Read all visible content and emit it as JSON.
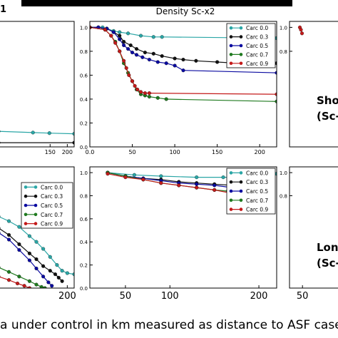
{
  "figure": {
    "header_left": "1",
    "header_center": "Density Sc-x2",
    "caption": "a under control in km measured as distance to ASF cases at",
    "side_labels": [
      {
        "line1": "Sho",
        "line2": "(Sc-"
      },
      {
        "line1": "Lon",
        "line2": "(Sc-"
      }
    ]
  },
  "colors": {
    "Carc 0.0": "#2aa6a6",
    "Carc 0.3": "#111111",
    "Carc 0.5": "#0a0aa0",
    "Carc 0.7": "#1f7a1f",
    "Carc 0.9": "#c41a1a"
  },
  "chart_data": [
    {
      "id": "top-left",
      "type": "line",
      "xlim": [
        0,
        220
      ],
      "ylim": [
        0,
        1.05
      ],
      "xticks": [
        150,
        200
      ],
      "yticks": [],
      "series": [
        {
          "name": "Carc 0.0",
          "x": [
            0,
            100,
            148,
            220
          ],
          "y": [
            0.13,
            0.12,
            0.115,
            0.11
          ]
        },
        {
          "name": "Carc 0.3",
          "x": [
            0,
            220
          ],
          "y": [
            0.035,
            0.035
          ]
        }
      ]
    },
    {
      "id": "top-middle",
      "type": "line",
      "xlim": [
        0,
        220
      ],
      "ylim": [
        0,
        1.05
      ],
      "xticks": [
        0,
        50,
        100,
        150,
        200
      ],
      "yticks": [
        0.0,
        0.2,
        0.4,
        0.6,
        0.8,
        1.0
      ],
      "legend": [
        "Carc 0.0",
        "Carc 0.3",
        "Carc 0.5",
        "Carc 0.7",
        "Carc 0.9"
      ],
      "legend_loc": "upper right",
      "series": [
        {
          "name": "Carc 0.0",
          "x": [
            0,
            10,
            15,
            20,
            28,
            35,
            45,
            60,
            75,
            85,
            220
          ],
          "y": [
            1.0,
            1.0,
            1.0,
            0.99,
            0.97,
            0.96,
            0.95,
            0.93,
            0.92,
            0.92,
            0.91
          ]
        },
        {
          "name": "Carc 0.3",
          "x": [
            0,
            10,
            20,
            28,
            35,
            40,
            48,
            55,
            65,
            75,
            85,
            100,
            110,
            125,
            150,
            175,
            220
          ],
          "y": [
            1.0,
            1.0,
            0.99,
            0.96,
            0.93,
            0.88,
            0.85,
            0.82,
            0.79,
            0.78,
            0.76,
            0.74,
            0.73,
            0.72,
            0.71,
            0.7,
            0.7
          ]
        },
        {
          "name": "Carc 0.5",
          "x": [
            0,
            10,
            20,
            28,
            35,
            40,
            45,
            50,
            55,
            62,
            70,
            80,
            90,
            100,
            110,
            220
          ],
          "y": [
            1.0,
            1.0,
            0.99,
            0.96,
            0.9,
            0.85,
            0.82,
            0.79,
            0.77,
            0.75,
            0.73,
            0.71,
            0.7,
            0.68,
            0.64,
            0.62
          ]
        },
        {
          "name": "Carc 0.7",
          "x": [
            0,
            18,
            25,
            30,
            35,
            40,
            45,
            50,
            55,
            60,
            65,
            70,
            80,
            90,
            220
          ],
          "y": [
            1.0,
            0.98,
            0.93,
            0.88,
            0.8,
            0.7,
            0.62,
            0.55,
            0.48,
            0.44,
            0.43,
            0.42,
            0.41,
            0.4,
            0.38
          ]
        },
        {
          "name": "Carc 0.9",
          "x": [
            0,
            18,
            25,
            30,
            35,
            40,
            43,
            46,
            50,
            53,
            56,
            60,
            65,
            70,
            220
          ],
          "y": [
            1.0,
            0.98,
            0.93,
            0.87,
            0.8,
            0.72,
            0.66,
            0.6,
            0.55,
            0.51,
            0.48,
            0.46,
            0.45,
            0.45,
            0.44
          ]
        }
      ]
    },
    {
      "id": "top-right",
      "type": "line",
      "xlim": [
        0,
        220
      ],
      "ylim": [
        0,
        1.05
      ],
      "xticks": [],
      "yticks": [
        0.8,
        1.0
      ],
      "series": [
        {
          "name": "Carc 0.9",
          "x": [
            40,
            44,
            48
          ],
          "y": [
            1.0,
            0.98,
            0.95
          ]
        }
      ]
    },
    {
      "id": "bottom-left",
      "type": "line",
      "xlim": [
        0,
        220
      ],
      "ylim": [
        0,
        1.05
      ],
      "xticks": [
        200
      ],
      "yticks": [],
      "legend": [
        "Carc 0.0",
        "Carc 0.3",
        "Carc 0.5",
        "Carc 0.7",
        "Carc 0.9"
      ],
      "legend_loc": "upper right",
      "series": [
        {
          "name": "Carc 0.0",
          "x": [
            0,
            30,
            60,
            90,
            110,
            130,
            150,
            170,
            185,
            200,
            220
          ],
          "y": [
            0.62,
            0.58,
            0.53,
            0.45,
            0.4,
            0.34,
            0.27,
            0.2,
            0.15,
            0.13,
            0.12
          ]
        },
        {
          "name": "Carc 0.3",
          "x": [
            0,
            30,
            60,
            90,
            110,
            130,
            150,
            165,
            175,
            185
          ],
          "y": [
            0.52,
            0.46,
            0.38,
            0.3,
            0.25,
            0.19,
            0.15,
            0.12,
            0.09,
            0.06
          ]
        },
        {
          "name": "Carc 0.5",
          "x": [
            0,
            30,
            60,
            90,
            110,
            130,
            145,
            155
          ],
          "y": [
            0.48,
            0.42,
            0.33,
            0.24,
            0.17,
            0.1,
            0.05,
            0.02
          ]
        },
        {
          "name": "Carc 0.7",
          "x": [
            0,
            30,
            60,
            90,
            110,
            125,
            135
          ],
          "y": [
            0.18,
            0.14,
            0.1,
            0.06,
            0.03,
            0.01,
            0.0
          ]
        },
        {
          "name": "Carc 0.9",
          "x": [
            0,
            30,
            55,
            75,
            90
          ],
          "y": [
            0.1,
            0.07,
            0.04,
            0.02,
            0.0
          ]
        }
      ]
    },
    {
      "id": "bottom-middle",
      "type": "line",
      "xlim": [
        10,
        220
      ],
      "ylim": [
        0,
        1.05
      ],
      "xticks": [
        50,
        100,
        200
      ],
      "yticks": [
        0.0,
        0.2,
        0.4,
        0.6,
        0.8,
        1.0
      ],
      "legend": [
        "Carc 0.0",
        "Carc 0.3",
        "Carc 0.5",
        "Carc 0.7",
        "Carc 0.9"
      ],
      "legend_loc": "upper right",
      "series": [
        {
          "name": "Carc 0.0",
          "x": [
            30,
            60,
            90,
            130,
            160,
            190,
            205,
            220
          ],
          "y": [
            1.0,
            0.98,
            0.97,
            0.96,
            0.96,
            0.96,
            0.99,
            0.99
          ]
        },
        {
          "name": "Carc 0.3",
          "x": [
            30,
            50,
            70,
            90,
            110,
            130,
            150,
            170
          ],
          "y": [
            1.0,
            0.97,
            0.95,
            0.94,
            0.92,
            0.91,
            0.9,
            0.89
          ]
        },
        {
          "name": "Carc 0.5",
          "x": [
            30,
            50,
            70,
            90,
            110,
            130,
            150,
            170
          ],
          "y": [
            1.0,
            0.97,
            0.95,
            0.93,
            0.91,
            0.9,
            0.89,
            0.87
          ]
        },
        {
          "name": "Carc 0.7",
          "x": [
            30,
            50,
            70,
            90,
            110,
            130,
            150,
            165
          ],
          "y": [
            1.0,
            0.97,
            0.94,
            0.91,
            0.89,
            0.87,
            0.85,
            0.84
          ]
        },
        {
          "name": "Carc 0.9",
          "x": [
            30,
            50,
            70,
            90,
            110,
            130,
            150,
            170,
            195
          ],
          "y": [
            0.99,
            0.96,
            0.94,
            0.91,
            0.89,
            0.87,
            0.85,
            0.82,
            0.79
          ]
        }
      ]
    },
    {
      "id": "bottom-right",
      "type": "line",
      "xlim": [
        0,
        220
      ],
      "ylim": [
        0,
        1.05
      ],
      "xticks": [
        50
      ],
      "yticks": [
        0.8,
        1.0
      ],
      "series": []
    }
  ]
}
